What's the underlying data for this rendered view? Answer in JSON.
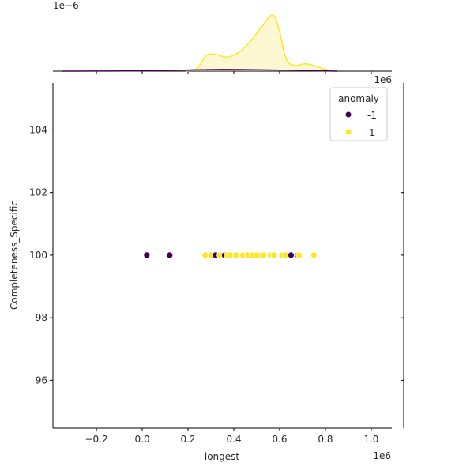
{
  "chart_data": {
    "type": "scatter",
    "title": "",
    "xlabel": "longest",
    "ylabel": "Completeness_Specific",
    "x_offset_label": "1e6",
    "marginal_offset_label": "1e−6",
    "marginal_x_offset_label": "1e6",
    "xlim": [
      -0.39,
      1.09
    ],
    "ylim": [
      94.47,
      105.5
    ],
    "x_ticks": [
      -0.2,
      0.0,
      0.2,
      0.4,
      0.6,
      0.8,
      1.0
    ],
    "x_tick_labels": [
      "−0.2",
      "0.0",
      "0.2",
      "0.4",
      "0.6",
      "0.8",
      "1.0"
    ],
    "y_ticks": [
      96,
      98,
      100,
      102,
      104
    ],
    "y_tick_labels": [
      "96",
      "98",
      "100",
      "102",
      "104"
    ],
    "grid": false,
    "legend": {
      "title": "anomaly",
      "position": "upper right",
      "entries": [
        {
          "label": "-1",
          "color": "#440154"
        },
        {
          "label": "1",
          "color": "#fde725"
        }
      ]
    },
    "series": [
      {
        "name": "-1",
        "color": "#440154",
        "points": [
          [
            0.02,
            100
          ],
          [
            0.12,
            100
          ],
          [
            0.32,
            100
          ],
          [
            0.36,
            100
          ],
          [
            0.65,
            100
          ],
          [
            0.68,
            100
          ]
        ]
      },
      {
        "name": "1",
        "color": "#fde725",
        "points": [
          [
            0.275,
            100
          ],
          [
            0.3,
            100
          ],
          [
            0.34,
            100
          ],
          [
            0.37,
            100
          ],
          [
            0.385,
            100
          ],
          [
            0.41,
            100
          ],
          [
            0.44,
            100
          ],
          [
            0.46,
            100
          ],
          [
            0.48,
            100
          ],
          [
            0.5,
            100
          ],
          [
            0.52,
            100
          ],
          [
            0.53,
            100
          ],
          [
            0.56,
            100
          ],
          [
            0.575,
            100
          ],
          [
            0.61,
            100
          ],
          [
            0.625,
            100
          ],
          [
            0.685,
            100
          ],
          [
            0.75,
            100
          ]
        ]
      }
    ],
    "marginal_kde": {
      "type": "area",
      "series": [
        {
          "name": "1",
          "color": "#fde725",
          "fill": "#fdf6c3",
          "x": [
            0.19,
            0.24,
            0.28,
            0.32,
            0.37,
            0.42,
            0.47,
            0.52,
            0.57,
            0.6,
            0.63,
            0.67,
            0.71,
            0.75,
            0.8,
            0.85
          ],
          "density": [
            0.0,
            0.05,
            0.28,
            0.3,
            0.25,
            0.33,
            0.52,
            0.78,
            1.0,
            0.7,
            0.2,
            0.1,
            0.13,
            0.1,
            0.03,
            0.0
          ]
        },
        {
          "name": "-1",
          "color": "#440154",
          "fill": "#8a6d8a",
          "x": [
            -0.35,
            0.0,
            0.2,
            0.35,
            0.5,
            0.7,
            0.85
          ],
          "density": [
            0.0,
            0.005,
            0.02,
            0.03,
            0.025,
            0.01,
            0.0
          ]
        }
      ]
    }
  }
}
